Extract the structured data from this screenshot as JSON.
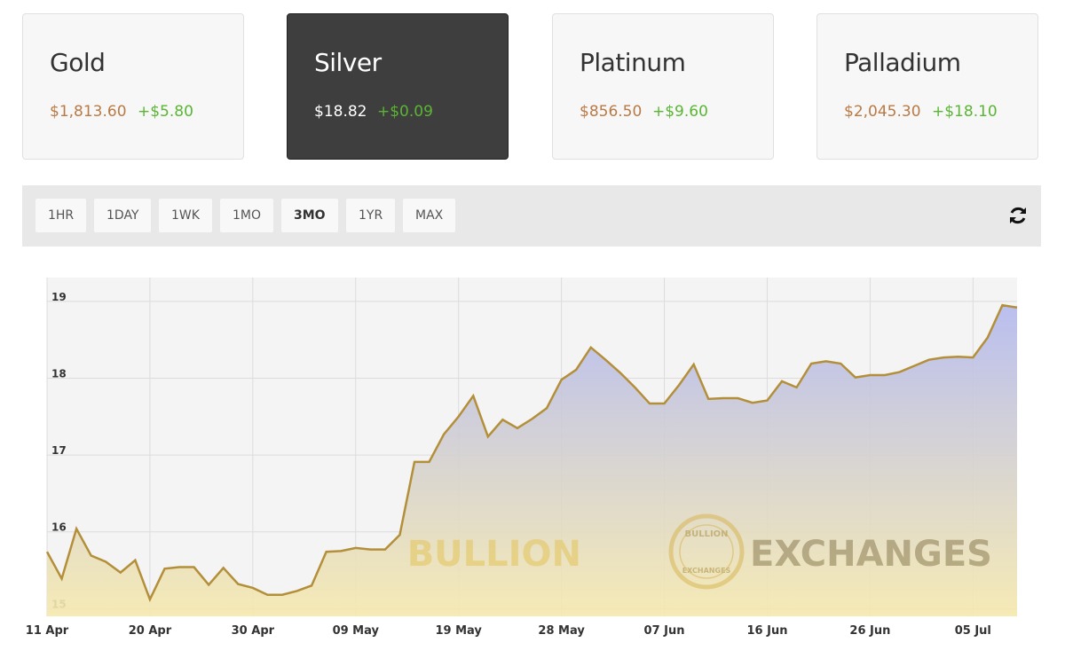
{
  "cards": [
    {
      "name": "Gold",
      "price": "$1,813.60",
      "change": "+$5.80",
      "active": false
    },
    {
      "name": "Silver",
      "price": "$18.82",
      "change": "+$0.09",
      "active": true
    },
    {
      "name": "Platinum",
      "price": "$856.50",
      "change": "+$9.60",
      "active": false
    },
    {
      "name": "Palladium",
      "price": "$2,045.30",
      "change": "+$18.10",
      "active": false
    }
  ],
  "ranges": [
    {
      "label": "1HR",
      "active": false
    },
    {
      "label": "1DAY",
      "active": false
    },
    {
      "label": "1WK",
      "active": false
    },
    {
      "label": "1MO",
      "active": false
    },
    {
      "label": "3MO",
      "active": true
    },
    {
      "label": "1YR",
      "active": false
    },
    {
      "label": "MAX",
      "active": false
    }
  ],
  "chart_data": {
    "type": "area",
    "watermark": {
      "left": "BULLION",
      "right": "EXCHANGES",
      "badge_top": "BULLION",
      "badge_bottom": "EXCHANGES"
    },
    "categories": [
      "11 Apr",
      null,
      null,
      null,
      null,
      null,
      null,
      "20 Apr",
      null,
      null,
      null,
      null,
      null,
      null,
      "30 Apr",
      null,
      null,
      null,
      null,
      null,
      null,
      "09 May",
      null,
      null,
      null,
      null,
      null,
      null,
      "19 May",
      null,
      null,
      null,
      null,
      null,
      null,
      "28 May",
      null,
      null,
      null,
      null,
      null,
      null,
      "07 Jun",
      null,
      null,
      null,
      null,
      null,
      null,
      "16 Jun",
      null,
      null,
      null,
      null,
      null,
      null,
      "26 Jun",
      null,
      null,
      null,
      null,
      null,
      null,
      "05 Jul",
      null,
      null,
      null
    ],
    "series": [
      {
        "name": "Silver",
        "color": "#b38f3a",
        "values": [
          15.74,
          15.39,
          16.04,
          15.69,
          15.61,
          15.47,
          15.63,
          15.12,
          15.52,
          15.54,
          15.54,
          15.31,
          15.53,
          15.32,
          15.27,
          15.18,
          15.18,
          15.23,
          15.3,
          15.74,
          15.75,
          15.79,
          15.77,
          15.77,
          15.96,
          16.91,
          16.91,
          17.27,
          17.5,
          17.77,
          17.24,
          17.46,
          17.35,
          17.47,
          17.61,
          17.98,
          18.11,
          18.4,
          18.24,
          18.07,
          17.88,
          17.67,
          17.67,
          17.91,
          18.18,
          17.73,
          17.74,
          17.74,
          17.68,
          17.71,
          17.96,
          17.88,
          18.19,
          18.22,
          18.19,
          18.01,
          18.04,
          18.04,
          18.08,
          18.16,
          18.24,
          18.27,
          18.28,
          18.27,
          18.53,
          18.95,
          18.92
        ]
      }
    ],
    "ylim": [
      14.9,
      19.31
    ],
    "yticks": [
      15,
      16,
      17,
      18,
      19
    ],
    "grid": true,
    "fill_top": "#b3b9ef",
    "fill_bottom": "#f6e9ae"
  }
}
